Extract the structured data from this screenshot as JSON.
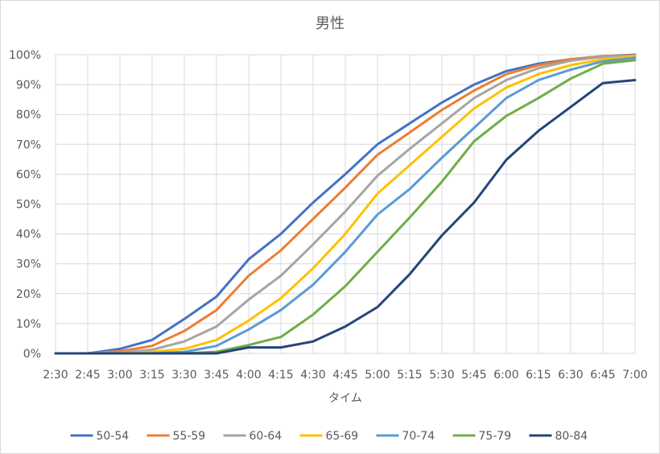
{
  "chart_data": {
    "type": "line",
    "title": "男性",
    "xlabel": "タイム",
    "ylabel": "",
    "ylim": [
      0,
      1
    ],
    "y_ticks": [
      0,
      0.1,
      0.2,
      0.3,
      0.4,
      0.5,
      0.6,
      0.7,
      0.8,
      0.9,
      1.0
    ],
    "y_tick_labels": [
      "0%",
      "10%",
      "20%",
      "30%",
      "40%",
      "50%",
      "60%",
      "70%",
      "80%",
      "90%",
      "100%"
    ],
    "grid": true,
    "legend_position": "bottom",
    "categories": [
      "2:30",
      "2:45",
      "3:00",
      "3:15",
      "3:30",
      "3:45",
      "4:00",
      "4:15",
      "4:30",
      "4:45",
      "5:00",
      "5:15",
      "5:30",
      "5:45",
      "6:00",
      "6:15",
      "6:30",
      "6:45",
      "7:00"
    ],
    "series": [
      {
        "name": "50-54",
        "color": "#4472C4",
        "values": [
          0,
          0,
          0.015,
          0.045,
          0.115,
          0.19,
          0.315,
          0.4,
          0.505,
          0.6,
          0.7,
          0.77,
          0.84,
          0.9,
          0.945,
          0.97,
          0.985,
          0.995,
          1.0
        ]
      },
      {
        "name": "55-59",
        "color": "#ED7D31",
        "values": [
          0,
          0,
          0.007,
          0.025,
          0.075,
          0.145,
          0.26,
          0.345,
          0.45,
          0.555,
          0.665,
          0.74,
          0.815,
          0.88,
          0.935,
          0.965,
          0.985,
          0.995,
          0.998
        ]
      },
      {
        "name": "60-64",
        "color": "#A5A5A5",
        "values": [
          0,
          0,
          0.003,
          0.012,
          0.04,
          0.09,
          0.18,
          0.26,
          0.365,
          0.475,
          0.595,
          0.685,
          0.77,
          0.855,
          0.915,
          0.955,
          0.98,
          0.993,
          0.997
        ]
      },
      {
        "name": "65-69",
        "color": "#FFC000",
        "values": [
          0,
          0,
          0,
          0.005,
          0.015,
          0.045,
          0.11,
          0.185,
          0.285,
          0.4,
          0.535,
          0.63,
          0.725,
          0.82,
          0.89,
          0.935,
          0.965,
          0.985,
          0.995
        ]
      },
      {
        "name": "70-74",
        "color": "#5B9BD5",
        "values": [
          0,
          0,
          0,
          0,
          0.005,
          0.025,
          0.08,
          0.145,
          0.23,
          0.34,
          0.465,
          0.55,
          0.655,
          0.755,
          0.855,
          0.915,
          0.95,
          0.978,
          0.99
        ]
      },
      {
        "name": "75-79",
        "color": "#70AD47",
        "values": [
          0,
          0,
          0,
          0,
          0,
          0.005,
          0.028,
          0.055,
          0.13,
          0.225,
          0.34,
          0.455,
          0.575,
          0.71,
          0.795,
          0.855,
          0.92,
          0.97,
          0.982
        ]
      },
      {
        "name": "80-84",
        "color": "#264478",
        "values": [
          0,
          0,
          0,
          0,
          0,
          0,
          0.02,
          0.02,
          0.04,
          0.09,
          0.155,
          0.265,
          0.395,
          0.505,
          0.648,
          0.745,
          0.825,
          0.905,
          0.915
        ]
      }
    ]
  }
}
